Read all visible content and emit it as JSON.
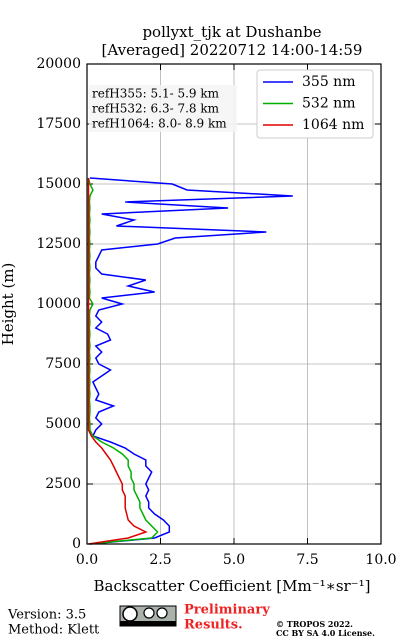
{
  "chart_data": {
    "type": "line",
    "title": "pollyxt_tjk at Dushanbe",
    "subtitle": "[Averaged] 20220712 14:00-14:59",
    "xlabel": "Backscatter Coefficient [Mm⁻¹∗sr⁻¹]",
    "ylabel": "Height (m)",
    "annotations": [
      "refH355:  5.1- 5.9 km",
      "refH532:  6.3- 7.8 km",
      "refH1064:  8.0- 8.9 km"
    ],
    "xlim": [
      0,
      10
    ],
    "xticks": [
      {
        "value": 0,
        "label": "0.0"
      },
      {
        "value": 2.5,
        "label": "2.5"
      },
      {
        "value": 5,
        "label": "5.0"
      },
      {
        "value": 7.5,
        "label": "7.5"
      },
      {
        "value": 10,
        "label": "10.0"
      }
    ],
    "ylim": [
      0,
      20000
    ],
    "yticks": [
      0,
      2500,
      5000,
      7500,
      10000,
      12500,
      15000,
      17500,
      20000
    ],
    "grid": true,
    "legend": "upper right",
    "y": [
      0,
      250,
      500,
      750,
      1000,
      1250,
      1500,
      1750,
      2000,
      2250,
      2500,
      2750,
      3000,
      3250,
      3500,
      3750,
      4000,
      4250,
      4500,
      4750,
      5000,
      5250,
      5500,
      5750,
      6000,
      6250,
      6500,
      6750,
      7000,
      7250,
      7500,
      7750,
      8000,
      8250,
      8500,
      8750,
      9000,
      9250,
      9500,
      9750,
      10000,
      10250,
      10500,
      10750,
      11000,
      11250,
      11500,
      11750,
      12000,
      12250,
      12500,
      12750,
      13000,
      13250,
      13500,
      13750,
      14000,
      14250,
      14500,
      14750,
      15000,
      15250
    ],
    "series": [
      {
        "name": "355 nm",
        "color": "#0000ff",
        "values": [
          0.1,
          2.3,
          2.8,
          2.8,
          2.6,
          2.3,
          2.1,
          2.1,
          2.0,
          2.1,
          2.0,
          2.1,
          2.2,
          2.0,
          2.0,
          1.6,
          1.3,
          0.8,
          0.2,
          0.3,
          0.5,
          0.3,
          0.4,
          0.9,
          0.3,
          0.4,
          0.3,
          0.2,
          0.5,
          0.8,
          0.4,
          0.3,
          0.5,
          0.3,
          0.8,
          0.7,
          0.3,
          0.5,
          0.3,
          0.4,
          1.2,
          0.5,
          2.3,
          1.4,
          2.0,
          0.5,
          0.3,
          0.3,
          0.4,
          0.5,
          2.4,
          3.0,
          6.1,
          1.0,
          1.6,
          0.5,
          4.8,
          1.3,
          7.0,
          3.4,
          2.9,
          0.1
        ]
      },
      {
        "name": "532 nm",
        "color": "#00b000",
        "values": [
          0.1,
          2.2,
          2.4,
          2.2,
          2.0,
          1.9,
          1.8,
          1.8,
          1.7,
          1.6,
          1.6,
          1.5,
          1.5,
          1.4,
          1.4,
          1.2,
          0.9,
          0.5,
          0.2,
          0.1,
          0.1,
          0.08,
          0.1,
          0.1,
          0.08,
          0.1,
          0.08,
          0.1,
          0.08,
          0.1,
          0.08,
          0.1,
          0.08,
          0.1,
          0.08,
          0.1,
          0.08,
          0.1,
          0.08,
          0.1,
          0.2,
          0.08,
          0.1,
          0.08,
          0.1,
          0.08,
          0.1,
          0.08,
          0.1,
          0.08,
          0.1,
          0.08,
          0.1,
          0.08,
          0.1,
          0.08,
          0.1,
          0.08,
          0.1,
          0.2,
          0.1,
          0.05
        ]
      },
      {
        "name": "1064 nm",
        "color": "#dd0000",
        "values": [
          0.05,
          1.4,
          2.0,
          1.6,
          1.4,
          1.35,
          1.3,
          1.3,
          1.3,
          1.2,
          1.2,
          1.1,
          1.0,
          0.9,
          0.8,
          0.65,
          0.5,
          0.3,
          0.15,
          0.05,
          0.05,
          0.05,
          0.05,
          0.05,
          0.05,
          0.05,
          0.05,
          0.05,
          0.05,
          0.05,
          0.05,
          0.05,
          0.05,
          0.05,
          0.05,
          0.05,
          0.05,
          0.05,
          0.05,
          0.05,
          0.05,
          0.05,
          0.05,
          0.05,
          0.05,
          0.05,
          0.05,
          0.05,
          0.05,
          0.05,
          0.05,
          0.05,
          0.05,
          0.05,
          0.05,
          0.05,
          0.05,
          0.05,
          0.05,
          0.05,
          0.05,
          0.05
        ]
      }
    ]
  },
  "footer": {
    "version": "Version: 3.5",
    "method": "Method: Klett",
    "preliminary": [
      "Preliminary",
      "Results."
    ],
    "copyright": [
      "© TROPOS 2022.",
      "CC BY SA 4.0 License."
    ]
  }
}
